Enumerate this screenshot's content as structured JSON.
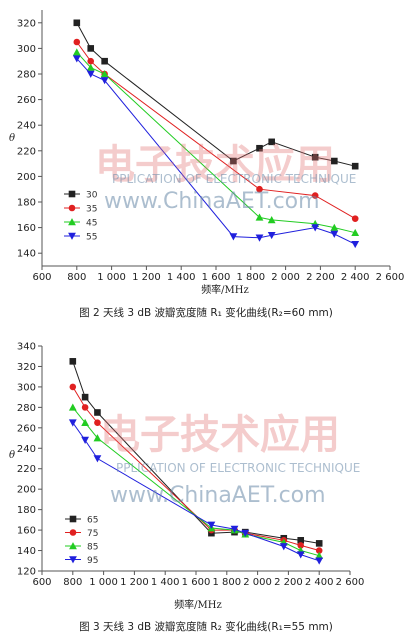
{
  "chart_data": [
    {
      "type": "line",
      "caption": "图 2  天线 3 dB 波瓣宽度随 R₁ 变化曲线(R₂=60 mm)",
      "xlabel": "频率/MHz",
      "ylabel": "θ",
      "xlim": [
        600,
        2600
      ],
      "ylim": [
        130,
        330
      ],
      "xticks": [
        600,
        800,
        1000,
        1200,
        1400,
        1600,
        1800,
        2000,
        2200,
        2400,
        2600
      ],
      "xtick_labels": [
        "600",
        "800",
        "1 000",
        "1 200",
        "1 400",
        "1 600",
        "1 800",
        "2 000",
        "2 200",
        "2 400",
        "2 600"
      ],
      "yticks": [
        140,
        160,
        180,
        200,
        220,
        240,
        260,
        280,
        300,
        320
      ],
      "legend_position": "lower-left",
      "series": [
        {
          "name": "30",
          "color": "#222222",
          "marker": "square",
          "x": [
            800,
            880,
            960,
            1700,
            1850,
            1920,
            2170,
            2280,
            2400
          ],
          "y": [
            320,
            300,
            290,
            212,
            222,
            227,
            215,
            212,
            208
          ]
        },
        {
          "name": "35",
          "color": "#e02020",
          "marker": "circle",
          "x": [
            800,
            880,
            960,
            1850,
            2170,
            2400
          ],
          "y": [
            305,
            290,
            280,
            190,
            185,
            167
          ]
        },
        {
          "name": "45",
          "color": "#22cc22",
          "marker": "triangle",
          "x": [
            800,
            880,
            960,
            1850,
            1920,
            2170,
            2280,
            2400
          ],
          "y": [
            297,
            285,
            280,
            168,
            166,
            163,
            160,
            156
          ]
        },
        {
          "name": "55",
          "color": "#2020dd",
          "marker": "triangle-down",
          "x": [
            800,
            880,
            960,
            1700,
            1850,
            1920,
            2170,
            2280,
            2400
          ],
          "y": [
            292,
            280,
            275,
            153,
            152,
            154,
            160,
            155,
            147
          ]
        }
      ]
    },
    {
      "type": "line",
      "caption": "图 3  天线 3 dB 波瓣宽度随 R₂ 变化曲线(R₁=55 mm)",
      "xlabel": "频率/MHz",
      "ylabel": "θ",
      "xlim": [
        600,
        2600
      ],
      "ylim": [
        120,
        340
      ],
      "xticks": [
        600,
        800,
        1000,
        1200,
        1400,
        1600,
        1800,
        2000,
        2200,
        2400,
        2600
      ],
      "xtick_labels": [
        "600",
        "800",
        "1 000",
        "1 200",
        "1 400",
        "1 600",
        "1 800",
        "2 000",
        "2 200",
        "2 400",
        "2 600"
      ],
      "yticks": [
        120,
        140,
        160,
        180,
        200,
        220,
        240,
        260,
        280,
        300,
        320,
        340
      ],
      "legend_position": "lower-left",
      "series": [
        {
          "name": "65",
          "color": "#222222",
          "marker": "square",
          "x": [
            800,
            880,
            960,
            1700,
            1850,
            1920,
            2170,
            2280,
            2400
          ],
          "y": [
            325,
            290,
            275,
            157,
            158,
            158,
            152,
            150,
            147
          ]
        },
        {
          "name": "75",
          "color": "#e02020",
          "marker": "circle",
          "x": [
            800,
            880,
            960,
            1700,
            1850,
            1920,
            2170,
            2280,
            2400
          ],
          "y": [
            300,
            280,
            265,
            160,
            160,
            157,
            150,
            145,
            140
          ]
        },
        {
          "name": "85",
          "color": "#22cc22",
          "marker": "triangle",
          "x": [
            800,
            880,
            960,
            1700,
            1850,
            1920,
            2170,
            2280,
            2400
          ],
          "y": [
            280,
            265,
            250,
            162,
            160,
            156,
            148,
            140,
            135
          ]
        },
        {
          "name": "95",
          "color": "#2020dd",
          "marker": "triangle-down",
          "x": [
            800,
            880,
            960,
            1700,
            1850,
            1920,
            2170,
            2280,
            2400
          ],
          "y": [
            265,
            248,
            230,
            165,
            161,
            157,
            144,
            136,
            130
          ]
        }
      ]
    }
  ],
  "watermark": {
    "logo_text": "电子技术应用",
    "line1": "PPLICATION OF ELECTRONIC TECHNIQUE",
    "line2": "www.ChinaAET.com"
  }
}
